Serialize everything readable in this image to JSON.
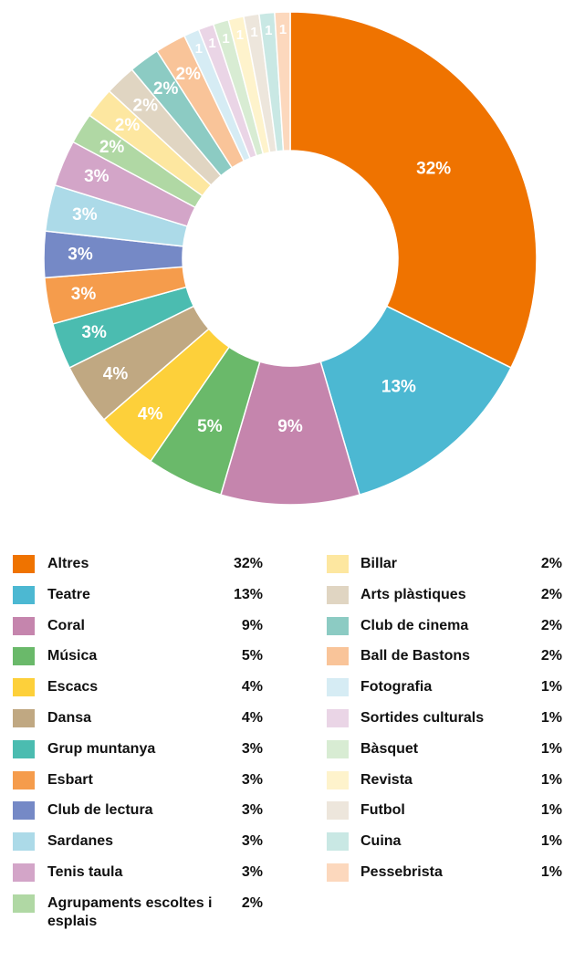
{
  "chart_data": {
    "type": "pie",
    "donut": true,
    "categories": [
      "Altres",
      "Teatre",
      "Coral",
      "Música",
      "Escacs",
      "Dansa",
      "Grup muntanya",
      "Esbart",
      "Club de lectura",
      "Sardanes",
      "Tenis taula",
      "Agrupaments escoltes i esplais",
      "Billar",
      "Arts plàstiques",
      "Club de cinema",
      "Ball de Bastons",
      "Fotografia",
      "Sortides culturals",
      "Bàsquet",
      "Revista",
      "Futbol",
      "Cuina",
      "Pessebrista"
    ],
    "values": [
      32,
      13,
      9,
      5,
      4,
      4,
      3,
      3,
      3,
      3,
      3,
      2,
      2,
      2,
      2,
      2,
      1,
      1,
      1,
      1,
      1,
      1,
      1
    ],
    "value_labels": [
      "32%",
      "13%",
      "9%",
      "5%",
      "4%",
      "4%",
      "3%",
      "3%",
      "3%",
      "3%",
      "3%",
      "2%",
      "2%",
      "2%",
      "2%",
      "2%",
      "1%",
      "1%",
      "1%",
      "1%",
      "1%",
      "1%",
      "1%"
    ],
    "colors": [
      "#ef7300",
      "#4cb8d2",
      "#c585ad",
      "#6ab96a",
      "#fdd03a",
      "#c0a882",
      "#4bbcb0",
      "#f59c4c",
      "#7589c6",
      "#acdae8",
      "#d3a5c8",
      "#b0d8a4",
      "#fde7a0",
      "#e0d5c2",
      "#8ccbc3",
      "#f9c499",
      "#d6ecf4",
      "#ead5e6",
      "#d8ecd3",
      "#fef3cc",
      "#ede6dc",
      "#c9e8e4",
      "#fcd8bd"
    ],
    "legend": "bottom"
  }
}
